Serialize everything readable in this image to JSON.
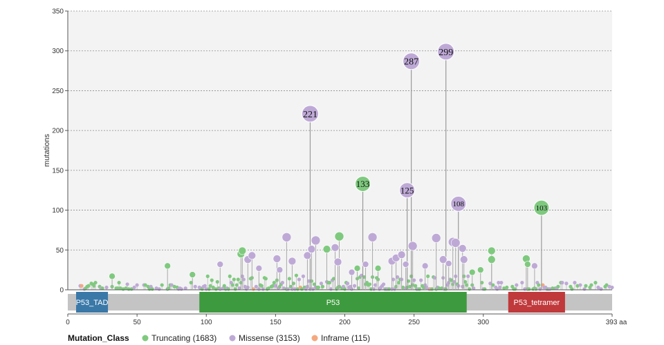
{
  "chart_data": {
    "type": "lollipop",
    "ylabel": "mutations",
    "ylim": [
      0,
      350
    ],
    "y_ticks": [
      0,
      50,
      100,
      150,
      200,
      250,
      300,
      350
    ],
    "xlim": [
      0,
      393
    ],
    "x_ticks": [
      0,
      50,
      100,
      150,
      200,
      250,
      300
    ],
    "x_end_label": "393 aa",
    "grid": true,
    "colors": {
      "Truncating": "#7fc97f",
      "Missense": "#bea9d6",
      "Inframe": "#f5a87e"
    },
    "domains": [
      {
        "name": "P53_TAD",
        "start": 6,
        "end": 29,
        "color": "#3a78a8"
      },
      {
        "name": "P53",
        "start": 95,
        "end": 288,
        "color": "#3e9a3e"
      },
      {
        "name": "P53_tetramer",
        "start": 318,
        "end": 359,
        "color": "#c0393b"
      }
    ],
    "protein_length": 393,
    "labeled_points": [
      {
        "pos": 175,
        "count": 221,
        "class": "Missense"
      },
      {
        "pos": 213,
        "count": 133,
        "class": "Truncating"
      },
      {
        "pos": 245,
        "count": 125,
        "class": "Missense"
      },
      {
        "pos": 248,
        "count": 287,
        "class": "Missense"
      },
      {
        "pos": 273,
        "count": 299,
        "class": "Missense"
      },
      {
        "pos": 282,
        "count": 108,
        "class": "Missense"
      },
      {
        "pos": 342,
        "count": 103,
        "class": "Truncating"
      }
    ],
    "points": [
      {
        "pos": 72,
        "count": 30,
        "class": "Truncating"
      },
      {
        "pos": 32,
        "count": 17,
        "class": "Truncating"
      },
      {
        "pos": 90,
        "count": 19,
        "class": "Truncating"
      },
      {
        "pos": 110,
        "count": 32,
        "class": "Missense"
      },
      {
        "pos": 125,
        "count": 45,
        "class": "Truncating"
      },
      {
        "pos": 126,
        "count": 49,
        "class": "Truncating"
      },
      {
        "pos": 130,
        "count": 38,
        "class": "Missense"
      },
      {
        "pos": 133,
        "count": 43,
        "class": "Missense"
      },
      {
        "pos": 138,
        "count": 27,
        "class": "Missense"
      },
      {
        "pos": 151,
        "count": 39,
        "class": "Missense"
      },
      {
        "pos": 153,
        "count": 25,
        "class": "Missense"
      },
      {
        "pos": 158,
        "count": 66,
        "class": "Missense"
      },
      {
        "pos": 162,
        "count": 36,
        "class": "Missense"
      },
      {
        "pos": 173,
        "count": 43,
        "class": "Missense"
      },
      {
        "pos": 176,
        "count": 51,
        "class": "Missense"
      },
      {
        "pos": 179,
        "count": 62,
        "class": "Missense"
      },
      {
        "pos": 187,
        "count": 51,
        "class": "Truncating"
      },
      {
        "pos": 193,
        "count": 53,
        "class": "Missense"
      },
      {
        "pos": 196,
        "count": 67,
        "class": "Truncating"
      },
      {
        "pos": 195,
        "count": 35,
        "class": "Missense"
      },
      {
        "pos": 205,
        "count": 22,
        "class": "Missense"
      },
      {
        "pos": 209,
        "count": 27,
        "class": "Truncating"
      },
      {
        "pos": 215,
        "count": 32,
        "class": "Missense"
      },
      {
        "pos": 220,
        "count": 66,
        "class": "Missense"
      },
      {
        "pos": 224,
        "count": 27,
        "class": "Truncating"
      },
      {
        "pos": 234,
        "count": 36,
        "class": "Missense"
      },
      {
        "pos": 237,
        "count": 40,
        "class": "Missense"
      },
      {
        "pos": 241,
        "count": 44,
        "class": "Missense"
      },
      {
        "pos": 244,
        "count": 32,
        "class": "Missense"
      },
      {
        "pos": 249,
        "count": 55,
        "class": "Missense"
      },
      {
        "pos": 258,
        "count": 30,
        "class": "Missense"
      },
      {
        "pos": 266,
        "count": 65,
        "class": "Missense"
      },
      {
        "pos": 271,
        "count": 38,
        "class": "Missense"
      },
      {
        "pos": 275,
        "count": 33,
        "class": "Missense"
      },
      {
        "pos": 278,
        "count": 60,
        "class": "Missense"
      },
      {
        "pos": 280,
        "count": 59,
        "class": "Missense"
      },
      {
        "pos": 285,
        "count": 52,
        "class": "Missense"
      },
      {
        "pos": 286,
        "count": 38,
        "class": "Missense"
      },
      {
        "pos": 292,
        "count": 22,
        "class": "Truncating"
      },
      {
        "pos": 298,
        "count": 25,
        "class": "Truncating"
      },
      {
        "pos": 306,
        "count": 49,
        "class": "Truncating"
      },
      {
        "pos": 306,
        "count": 38,
        "class": "Truncating"
      },
      {
        "pos": 331,
        "count": 39,
        "class": "Truncating"
      },
      {
        "pos": 332,
        "count": 32,
        "class": "Truncating"
      },
      {
        "pos": 337,
        "count": 30,
        "class": "Missense"
      }
    ]
  },
  "legend": {
    "title": "Mutation_Class",
    "items": [
      {
        "label": "Truncating (1683)",
        "color": "#7fc97f"
      },
      {
        "label": "Missense (3153)",
        "color": "#bea9d6"
      },
      {
        "label": "Inframe (115)",
        "color": "#f5a87e"
      }
    ]
  }
}
